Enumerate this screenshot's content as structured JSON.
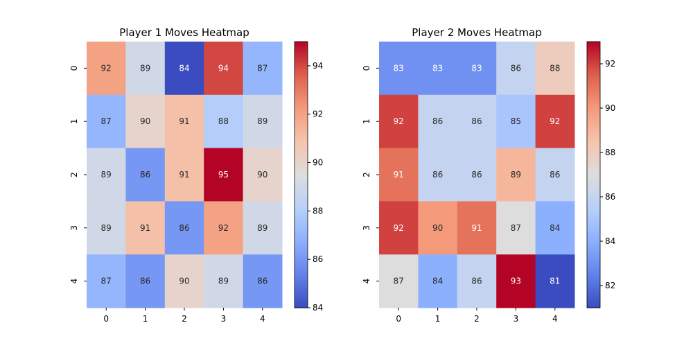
{
  "chart_data": [
    {
      "type": "heatmap",
      "title": "Player 1 Moves Heatmap",
      "xlabel": "",
      "ylabel": "",
      "x_categories": [
        "0",
        "1",
        "2",
        "3",
        "4"
      ],
      "y_categories": [
        "0",
        "1",
        "2",
        "3",
        "4"
      ],
      "values": [
        [
          92,
          89,
          84,
          94,
          87
        ],
        [
          87,
          90,
          91,
          88,
          89
        ],
        [
          89,
          86,
          91,
          95,
          90
        ],
        [
          89,
          91,
          86,
          92,
          89
        ],
        [
          87,
          86,
          90,
          89,
          86
        ]
      ],
      "vmin": 84,
      "vmax": 95,
      "colormap": "coolwarm",
      "colorbar_ticks": [
        84,
        86,
        88,
        90,
        92,
        94
      ],
      "annotated": true,
      "grid": false
    },
    {
      "type": "heatmap",
      "title": "Player 2 Moves Heatmap",
      "xlabel": "",
      "ylabel": "",
      "x_categories": [
        "0",
        "1",
        "2",
        "3",
        "4"
      ],
      "y_categories": [
        "0",
        "1",
        "2",
        "3",
        "4"
      ],
      "values": [
        [
          83,
          83,
          83,
          86,
          88
        ],
        [
          92,
          86,
          86,
          85,
          92
        ],
        [
          91,
          86,
          86,
          89,
          86
        ],
        [
          92,
          90,
          91,
          87,
          84
        ],
        [
          87,
          84,
          86,
          93,
          81
        ]
      ],
      "vmin": 81,
      "vmax": 93,
      "colormap": "coolwarm",
      "colorbar_ticks": [
        82,
        84,
        86,
        88,
        90,
        92
      ],
      "annotated": true,
      "grid": false
    }
  ]
}
